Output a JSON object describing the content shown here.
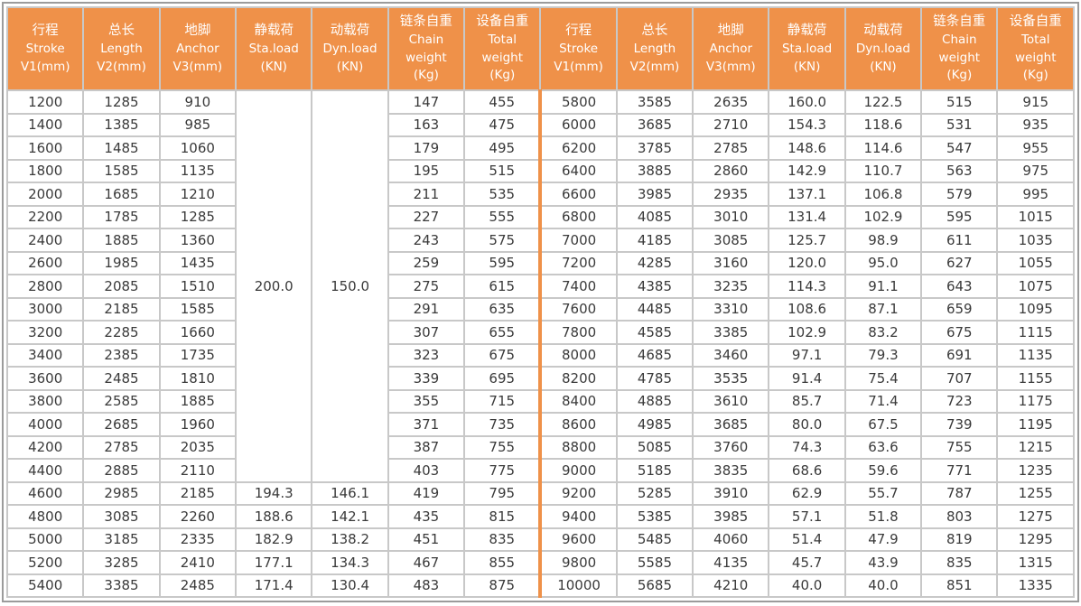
{
  "colors": {
    "accent_orange": "#EF9149",
    "grid_gray": "#C8C8C8",
    "outer_border_gray": "#9B9B9B",
    "text_dark": "#3A3A3A",
    "header_text": "#FFFFFF",
    "cell_background": "#FFFFFF"
  },
  "table": {
    "columns": [
      {
        "key": "stroke",
        "lines": [
          "行程",
          "Stroke",
          "V1(mm)"
        ]
      },
      {
        "key": "length",
        "lines": [
          "总长",
          "Length",
          "V2(mm)"
        ]
      },
      {
        "key": "anchor",
        "lines": [
          "地脚",
          "Anchor",
          "V3(mm)"
        ]
      },
      {
        "key": "sta-load",
        "lines": [
          "静载荷",
          "Sta.load",
          "(KN)"
        ]
      },
      {
        "key": "dyn-load",
        "lines": [
          "动载荷",
          "Dyn.load",
          "(KN)"
        ]
      },
      {
        "key": "chain-weight",
        "lines": [
          "链条自重",
          "Chain",
          "weight",
          "(Kg)"
        ]
      },
      {
        "key": "total-weight",
        "lines": [
          "设备自重",
          "Total",
          "weight",
          "(Kg)"
        ]
      }
    ],
    "left_merged": {
      "sta_load": "200.0",
      "dyn_load": "150.0",
      "row_span": 17
    },
    "left_rows": [
      [
        "1200",
        "1285",
        "910",
        null,
        null,
        "147",
        "455"
      ],
      [
        "1400",
        "1385",
        "985",
        null,
        null,
        "163",
        "475"
      ],
      [
        "1600",
        "1485",
        "1060",
        null,
        null,
        "179",
        "495"
      ],
      [
        "1800",
        "1585",
        "1135",
        null,
        null,
        "195",
        "515"
      ],
      [
        "2000",
        "1685",
        "1210",
        null,
        null,
        "211",
        "535"
      ],
      [
        "2200",
        "1785",
        "1285",
        null,
        null,
        "227",
        "555"
      ],
      [
        "2400",
        "1885",
        "1360",
        null,
        null,
        "243",
        "575"
      ],
      [
        "2600",
        "1985",
        "1435",
        null,
        null,
        "259",
        "595"
      ],
      [
        "2800",
        "2085",
        "1510",
        null,
        null,
        "275",
        "615"
      ],
      [
        "3000",
        "2185",
        "1585",
        null,
        null,
        "291",
        "635"
      ],
      [
        "3200",
        "2285",
        "1660",
        null,
        null,
        "307",
        "655"
      ],
      [
        "3400",
        "2385",
        "1735",
        null,
        null,
        "323",
        "675"
      ],
      [
        "3600",
        "2485",
        "1810",
        null,
        null,
        "339",
        "695"
      ],
      [
        "3800",
        "2585",
        "1885",
        null,
        null,
        "355",
        "715"
      ],
      [
        "4000",
        "2685",
        "1960",
        null,
        null,
        "371",
        "735"
      ],
      [
        "4200",
        "2785",
        "2035",
        null,
        null,
        "387",
        "755"
      ],
      [
        "4400",
        "2885",
        "2110",
        null,
        null,
        "403",
        "775"
      ],
      [
        "4600",
        "2985",
        "2185",
        "194.3",
        "146.1",
        "419",
        "795"
      ],
      [
        "4800",
        "3085",
        "2260",
        "188.6",
        "142.1",
        "435",
        "815"
      ],
      [
        "5000",
        "3185",
        "2335",
        "182.9",
        "138.2",
        "451",
        "835"
      ],
      [
        "5200",
        "3285",
        "2410",
        "177.1",
        "134.3",
        "467",
        "855"
      ],
      [
        "5400",
        "3385",
        "2485",
        "171.4",
        "130.4",
        "483",
        "875"
      ]
    ],
    "right_rows": [
      [
        "5800",
        "3585",
        "2635",
        "160.0",
        "122.5",
        "515",
        "915"
      ],
      [
        "6000",
        "3685",
        "2710",
        "154.3",
        "118.6",
        "531",
        "935"
      ],
      [
        "6200",
        "3785",
        "2785",
        "148.6",
        "114.6",
        "547",
        "955"
      ],
      [
        "6400",
        "3885",
        "2860",
        "142.9",
        "110.7",
        "563",
        "975"
      ],
      [
        "6600",
        "3985",
        "2935",
        "137.1",
        "106.8",
        "579",
        "995"
      ],
      [
        "6800",
        "4085",
        "3010",
        "131.4",
        "102.9",
        "595",
        "1015"
      ],
      [
        "7000",
        "4185",
        "3085",
        "125.7",
        "98.9",
        "611",
        "1035"
      ],
      [
        "7200",
        "4285",
        "3160",
        "120.0",
        "95.0",
        "627",
        "1055"
      ],
      [
        "7400",
        "4385",
        "3235",
        "114.3",
        "91.1",
        "643",
        "1075"
      ],
      [
        "7600",
        "4485",
        "3310",
        "108.6",
        "87.1",
        "659",
        "1095"
      ],
      [
        "7800",
        "4585",
        "3385",
        "102.9",
        "83.2",
        "675",
        "1115"
      ],
      [
        "8000",
        "4685",
        "3460",
        "97.1",
        "79.3",
        "691",
        "1135"
      ],
      [
        "8200",
        "4785",
        "3535",
        "91.4",
        "75.4",
        "707",
        "1155"
      ],
      [
        "8400",
        "4885",
        "3610",
        "85.7",
        "71.4",
        "723",
        "1175"
      ],
      [
        "8600",
        "4985",
        "3685",
        "80.0",
        "67.5",
        "739",
        "1195"
      ],
      [
        "8800",
        "5085",
        "3760",
        "74.3",
        "63.6",
        "755",
        "1215"
      ],
      [
        "9000",
        "5185",
        "3835",
        "68.6",
        "59.6",
        "771",
        "1235"
      ],
      [
        "9200",
        "5285",
        "3910",
        "62.9",
        "55.7",
        "787",
        "1255"
      ],
      [
        "9400",
        "5385",
        "3985",
        "57.1",
        "51.8",
        "803",
        "1275"
      ],
      [
        "9600",
        "5485",
        "4060",
        "51.4",
        "47.9",
        "819",
        "1295"
      ],
      [
        "9800",
        "5585",
        "4135",
        "45.7",
        "43.9",
        "835",
        "1315"
      ],
      [
        "10000",
        "5685",
        "4210",
        "40.0",
        "40.0",
        "851",
        "1335"
      ]
    ]
  }
}
